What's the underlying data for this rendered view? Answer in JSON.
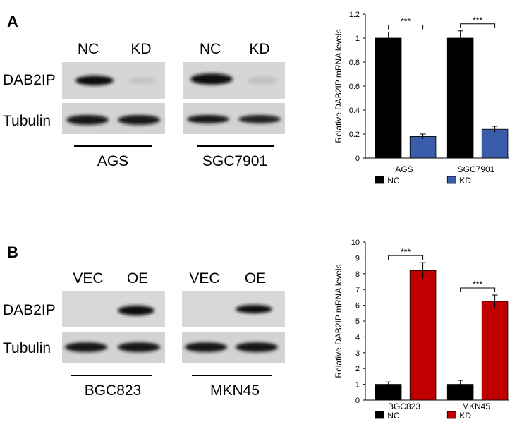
{
  "panels": [
    {
      "letter": "A",
      "rows": [
        "DAB2IP",
        "Tubulin"
      ],
      "blots": [
        {
          "lanes": [
            "NC",
            "KD"
          ],
          "cell_line": "AGS"
        },
        {
          "lanes": [
            "NC",
            "KD"
          ],
          "cell_line": "SGC7901"
        }
      ]
    },
    {
      "letter": "B",
      "rows": [
        "DAB2IP",
        "Tubulin"
      ],
      "blots": [
        {
          "lanes": [
            "VEC",
            "OE"
          ],
          "cell_line": "BGC823"
        },
        {
          "lanes": [
            "VEC",
            "OE"
          ],
          "cell_line": "MKN45"
        }
      ]
    }
  ],
  "chart_data": [
    {
      "type": "bar",
      "ylabel": "Relative DAB2IP mRNA levels",
      "categories": [
        "AGS",
        "SGC7901"
      ],
      "series": [
        {
          "name": "NC",
          "color": "#000000",
          "values": [
            1.0,
            1.0
          ],
          "errors": [
            0.05,
            0.06
          ]
        },
        {
          "name": "KD",
          "color": "#3b5ca8",
          "values": [
            0.18,
            0.24
          ],
          "errors": [
            0.02,
            0.025
          ]
        }
      ],
      "annotations": [
        "***",
        "***"
      ],
      "ylim": [
        0,
        1.2
      ],
      "yticks": [
        0,
        0.2,
        0.4,
        0.6,
        0.8,
        1,
        1.2
      ]
    },
    {
      "type": "bar",
      "ylabel": "Relative DAB2IP mRNA levels",
      "categories": [
        "BGC823",
        "MKN45"
      ],
      "series": [
        {
          "name": "NC",
          "color": "#000000",
          "values": [
            1.0,
            1.0
          ],
          "errors": [
            0.15,
            0.25
          ]
        },
        {
          "name": "KD",
          "color": "#c00000",
          "values": [
            8.2,
            6.25
          ],
          "errors": [
            0.5,
            0.4
          ]
        }
      ],
      "annotations": [
        "***",
        "***"
      ],
      "ylim": [
        0,
        10
      ],
      "yticks": [
        0,
        1,
        2,
        3,
        4,
        5,
        6,
        7,
        8,
        9,
        10
      ]
    }
  ]
}
